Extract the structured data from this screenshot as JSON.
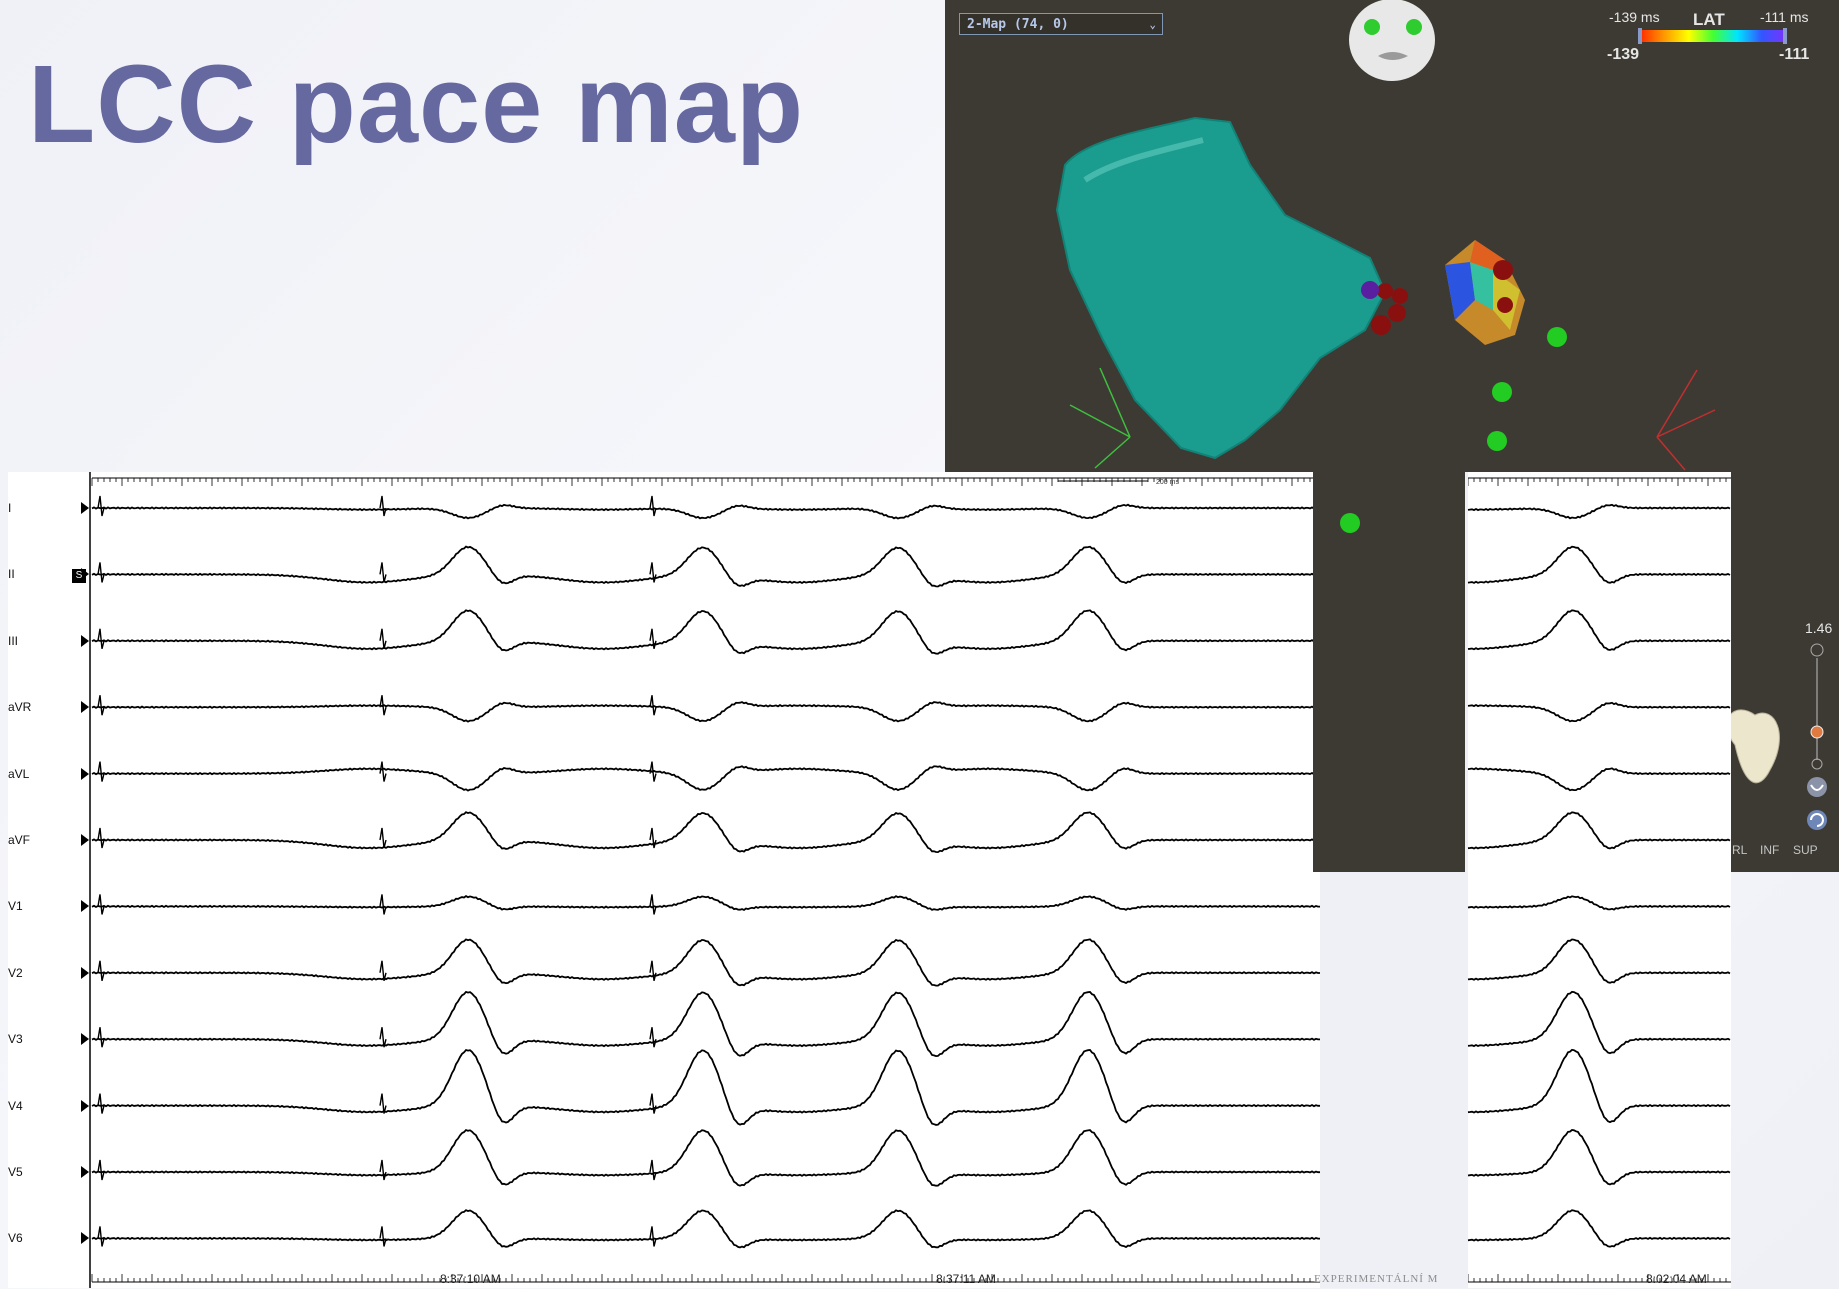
{
  "slide": {
    "title": "LCC pace map"
  },
  "map": {
    "selector_value": "2-Map (74, 0)",
    "lat": {
      "title": "LAT",
      "min_label": "-139 ms",
      "max_label": "-111 ms",
      "min_value": "-139",
      "max_value": "-111"
    },
    "zoom_value": "1.46",
    "orientation_labels": [
      "RL",
      "INF",
      "SUP"
    ]
  },
  "ecg": {
    "leads": [
      "I",
      "II",
      "III",
      "aVR",
      "aVL",
      "aVF",
      "V1",
      "V2",
      "V3",
      "V4",
      "V5",
      "V6"
    ],
    "stim_marker": "S",
    "scale_label": "200 ms",
    "timestamps": [
      "8:37:10 AM",
      "8:37:11 AM",
      "8:02:04 AM"
    ]
  },
  "footer": {
    "logo_text": "EXPERIMENTÁLNÍ M"
  },
  "colors": {
    "title": "#6668a0",
    "map_background": "#3d3a33",
    "chamber": "#1a9c8f",
    "catheter_point": "#22cc22",
    "ablation_point": "#8a1010"
  }
}
